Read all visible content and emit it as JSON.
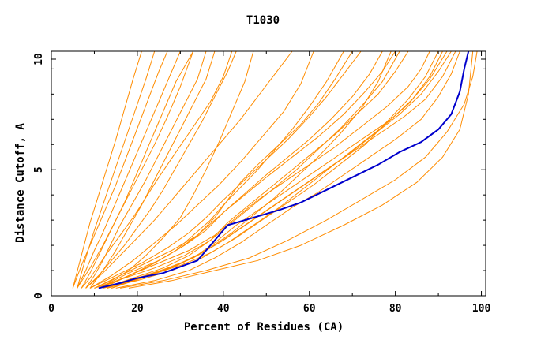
{
  "chart_data": {
    "type": "line",
    "title": "T1030",
    "xlabel": "Percent of Residues (CA)",
    "ylabel": "Distance Cutoff, A",
    "xlim": [
      0,
      101
    ],
    "ylim": [
      0,
      9.7
    ],
    "x_ticks": [
      "0",
      "20",
      "40",
      "60",
      "80",
      "100"
    ],
    "y_ticks": [
      "0",
      "5",
      "10"
    ],
    "grid": false,
    "colors": {
      "background_series": "#ff8c00",
      "highlight_series": "#0000cc",
      "axes": "#000000"
    },
    "highlight_series": {
      "x": [
        11,
        16,
        20,
        26,
        34,
        37,
        41,
        47,
        53,
        58,
        64,
        70,
        76,
        81,
        86,
        90,
        93,
        95,
        96,
        97
      ],
      "y": [
        0.3,
        0.5,
        0.7,
        0.9,
        1.4,
        2.0,
        2.8,
        3.1,
        3.4,
        3.7,
        4.2,
        4.7,
        5.2,
        5.7,
        6.1,
        6.6,
        7.2,
        8.1,
        9.0,
        9.7
      ]
    },
    "background_series": [
      {
        "x": [
          5,
          7,
          9,
          11,
          13,
          15,
          17,
          19,
          21,
          23,
          25,
          27
        ],
        "y": [
          0.3,
          1.2,
          2.0,
          2.8,
          3.6,
          4.4,
          5.3,
          6.2,
          7.1,
          8.0,
          8.9,
          9.7
        ]
      },
      {
        "x": [
          6,
          8,
          10,
          12,
          14,
          16,
          18,
          20,
          22,
          24,
          26,
          28,
          30
        ],
        "y": [
          0.3,
          1.0,
          1.8,
          2.5,
          3.3,
          4.1,
          4.9,
          5.7,
          6.5,
          7.3,
          8.1,
          8.9,
          9.7
        ]
      },
      {
        "x": [
          7,
          9,
          11,
          13,
          15,
          17,
          19,
          21,
          23,
          25,
          27,
          29,
          31,
          33
        ],
        "y": [
          0.3,
          0.9,
          1.6,
          2.3,
          3.0,
          3.7,
          4.5,
          5.3,
          6.1,
          6.9,
          7.7,
          8.5,
          9.1,
          9.7
        ]
      },
      {
        "x": [
          8,
          10,
          12,
          14,
          16,
          19,
          22,
          25,
          28,
          31,
          34,
          36
        ],
        "y": [
          0.3,
          0.8,
          1.4,
          2.1,
          2.8,
          3.7,
          4.6,
          5.6,
          6.6,
          7.6,
          8.6,
          9.7
        ]
      },
      {
        "x": [
          6,
          8,
          10,
          12,
          14,
          16,
          18,
          20,
          22,
          24
        ],
        "y": [
          0.3,
          1.5,
          2.6,
          3.6,
          4.6,
          5.6,
          6.6,
          7.6,
          8.6,
          9.7
        ]
      },
      {
        "x": [
          7,
          9,
          11,
          13,
          16,
          19,
          22,
          25,
          29,
          33,
          37,
          40,
          42
        ],
        "y": [
          0.3,
          0.7,
          1.2,
          1.7,
          2.4,
          3.1,
          3.9,
          4.7,
          5.7,
          6.7,
          7.7,
          8.7,
          9.7
        ]
      },
      {
        "x": [
          8,
          11,
          14,
          17,
          20,
          23,
          26,
          29,
          32,
          35,
          38,
          41,
          43
        ],
        "y": [
          0.3,
          0.8,
          1.4,
          2.0,
          2.7,
          3.4,
          4.2,
          5.1,
          6.0,
          6.9,
          7.9,
          8.9,
          9.7
        ]
      },
      {
        "x": [
          5,
          7,
          9,
          11,
          13,
          15,
          17,
          19,
          21
        ],
        "y": [
          0.3,
          1.6,
          2.9,
          4.0,
          5.1,
          6.2,
          7.4,
          8.6,
          9.7
        ]
      },
      {
        "x": [
          9,
          12,
          15,
          18,
          21,
          24,
          27,
          30,
          33,
          36,
          38
        ],
        "y": [
          0.3,
          1.0,
          1.8,
          2.7,
          3.6,
          4.6,
          5.6,
          6.6,
          7.6,
          8.6,
          9.7
        ]
      },
      {
        "x": [
          6,
          9,
          12,
          15,
          18,
          21,
          24,
          27,
          30,
          33
        ],
        "y": [
          0.3,
          1.1,
          2.0,
          3.0,
          4.0,
          5.0,
          6.0,
          7.1,
          8.3,
          9.7
        ]
      },
      {
        "x": [
          10,
          14,
          18,
          22,
          26,
          30,
          33,
          36,
          39,
          42,
          45,
          47
        ],
        "y": [
          0.3,
          0.6,
          1.0,
          1.6,
          2.3,
          3.1,
          4.0,
          5.0,
          6.1,
          7.3,
          8.5,
          9.7
        ]
      },
      {
        "x": [
          12,
          18,
          24,
          30,
          34,
          38,
          41,
          44,
          48,
          53,
          58,
          62,
          66,
          70
        ],
        "y": [
          0.3,
          0.8,
          1.3,
          1.9,
          2.4,
          3.1,
          3.8,
          4.5,
          5.2,
          6.0,
          6.8,
          7.6,
          8.6,
          9.7
        ]
      },
      {
        "x": [
          11,
          17,
          23,
          29,
          33,
          37,
          40,
          44,
          48,
          52,
          56,
          60,
          64,
          68
        ],
        "y": [
          0.3,
          0.7,
          1.2,
          1.8,
          2.4,
          3.0,
          3.6,
          4.3,
          5.0,
          5.8,
          6.6,
          7.5,
          8.5,
          9.7
        ]
      },
      {
        "x": [
          10,
          16,
          22,
          28,
          34,
          38,
          42,
          46,
          50,
          55,
          60,
          65,
          70,
          74,
          77
        ],
        "y": [
          0.3,
          0.8,
          1.3,
          1.8,
          2.4,
          3.0,
          3.6,
          4.2,
          4.8,
          5.5,
          6.2,
          7.0,
          7.9,
          8.8,
          9.7
        ]
      },
      {
        "x": [
          12,
          19,
          26,
          32,
          37,
          41,
          46,
          51,
          56,
          61,
          66,
          71,
          76,
          80,
          83
        ],
        "y": [
          0.3,
          0.7,
          1.1,
          1.6,
          2.2,
          2.9,
          3.6,
          4.3,
          5.0,
          5.7,
          6.4,
          7.2,
          8.0,
          8.9,
          9.7
        ]
      },
      {
        "x": [
          11,
          18,
          25,
          31,
          36,
          40,
          45,
          50,
          56,
          62,
          68,
          73,
          77,
          80
        ],
        "y": [
          0.3,
          0.9,
          1.4,
          2.0,
          2.6,
          3.3,
          4.0,
          4.7,
          5.5,
          6.3,
          7.2,
          8.1,
          8.9,
          9.7
        ]
      },
      {
        "x": [
          9,
          15,
          21,
          27,
          32,
          36,
          40,
          45,
          50,
          55,
          60,
          64,
          68,
          72
        ],
        "y": [
          0.3,
          0.8,
          1.3,
          1.9,
          2.5,
          3.1,
          3.8,
          4.6,
          5.4,
          6.2,
          7.1,
          7.9,
          8.8,
          9.7
        ]
      },
      {
        "x": [
          13,
          20,
          27,
          33,
          38,
          43,
          49,
          55,
          61,
          67,
          73,
          79,
          84,
          88,
          91
        ],
        "y": [
          0.3,
          0.7,
          1.1,
          1.5,
          2.1,
          2.8,
          3.5,
          4.2,
          4.9,
          5.6,
          6.3,
          7.0,
          7.8,
          8.7,
          9.7
        ]
      },
      {
        "x": [
          12,
          19,
          26,
          33,
          39,
          45,
          51,
          57,
          63,
          69,
          75,
          81,
          86,
          90,
          93
        ],
        "y": [
          0.3,
          0.6,
          1.0,
          1.5,
          2.1,
          2.8,
          3.5,
          4.2,
          4.9,
          5.6,
          6.4,
          7.2,
          8.0,
          8.9,
          9.7
        ]
      },
      {
        "x": [
          14,
          21,
          28,
          34,
          40,
          46,
          52,
          58,
          64,
          70,
          76,
          82,
          87,
          91,
          94
        ],
        "y": [
          0.3,
          0.7,
          1.1,
          1.6,
          2.2,
          2.9,
          3.6,
          4.3,
          5.0,
          5.7,
          6.4,
          7.1,
          7.8,
          8.7,
          9.7
        ]
      },
      {
        "x": [
          11,
          18,
          25,
          32,
          38,
          43,
          48,
          54,
          60,
          66,
          72,
          78,
          83,
          86,
          88
        ],
        "y": [
          0.3,
          0.8,
          1.3,
          1.8,
          2.4,
          3.1,
          3.8,
          4.5,
          5.2,
          5.9,
          6.7,
          7.5,
          8.3,
          9.0,
          9.7
        ]
      },
      {
        "x": [
          15,
          24,
          32,
          38,
          44,
          50,
          56,
          62,
          68,
          74,
          80,
          86,
          90,
          93,
          95
        ],
        "y": [
          0.3,
          0.6,
          1.0,
          1.5,
          2.1,
          2.8,
          3.5,
          4.1,
          4.8,
          5.5,
          6.2,
          7.0,
          7.9,
          8.8,
          9.7
        ]
      },
      {
        "x": [
          16,
          26,
          36,
          46,
          55,
          64,
          72,
          80,
          87,
          92,
          96,
          98,
          99
        ],
        "y": [
          0.3,
          0.6,
          1.0,
          1.5,
          2.2,
          3.0,
          3.8,
          4.6,
          5.5,
          6.5,
          7.6,
          8.7,
          9.7
        ]
      },
      {
        "x": [
          18,
          28,
          38,
          48,
          58,
          68,
          77,
          85,
          91,
          95,
          97,
          98
        ],
        "y": [
          0.3,
          0.6,
          1.0,
          1.4,
          2.0,
          2.8,
          3.6,
          4.5,
          5.5,
          6.6,
          8.0,
          9.7
        ]
      },
      {
        "x": [
          10,
          17,
          24,
          31,
          37,
          42,
          47,
          52,
          57,
          62,
          67,
          72,
          77,
          81
        ],
        "y": [
          0.3,
          0.7,
          1.1,
          1.6,
          2.2,
          2.9,
          3.6,
          4.3,
          5.0,
          5.8,
          6.6,
          7.5,
          8.5,
          9.7
        ]
      },
      {
        "x": [
          13,
          21,
          29,
          36,
          42,
          47,
          52,
          57,
          62,
          67,
          72,
          76,
          79
        ],
        "y": [
          0.3,
          0.7,
          1.2,
          1.8,
          2.5,
          3.2,
          3.9,
          4.7,
          5.5,
          6.4,
          7.4,
          8.5,
          9.7
        ]
      },
      {
        "x": [
          9,
          14,
          19,
          24,
          29,
          34,
          39,
          44,
          49,
          54,
          58,
          61
        ],
        "y": [
          0.3,
          0.8,
          1.4,
          2.1,
          2.8,
          3.6,
          4.4,
          5.3,
          6.3,
          7.3,
          8.4,
          9.7
        ]
      },
      {
        "x": [
          8,
          12,
          16,
          20,
          24,
          28,
          32,
          36,
          40,
          44,
          48,
          52,
          56
        ],
        "y": [
          0.3,
          0.9,
          1.6,
          2.3,
          3.0,
          3.8,
          4.6,
          5.4,
          6.2,
          7.0,
          7.9,
          8.8,
          9.7
        ]
      },
      {
        "x": [
          12,
          20,
          28,
          35,
          41,
          47,
          53,
          59,
          65,
          71,
          77,
          83,
          88,
          92
        ],
        "y": [
          0.3,
          0.6,
          1.0,
          1.5,
          2.1,
          2.8,
          3.5,
          4.3,
          5.1,
          5.9,
          6.7,
          7.6,
          8.6,
          9.7
        ]
      },
      {
        "x": [
          14,
          22,
          30,
          37,
          43,
          49,
          55,
          61,
          67,
          73,
          78,
          83,
          87,
          90
        ],
        "y": [
          0.3,
          0.8,
          1.2,
          1.7,
          2.3,
          3.0,
          3.7,
          4.4,
          5.2,
          6.0,
          6.9,
          7.8,
          8.7,
          9.7
        ]
      }
    ]
  }
}
